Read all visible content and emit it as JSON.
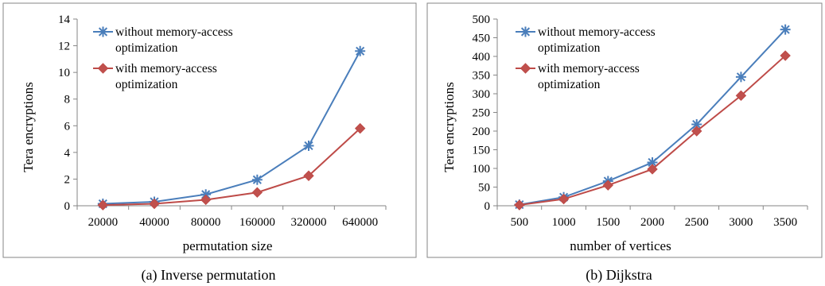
{
  "colors": {
    "series_without": "#4a7ebb",
    "series_with": "#be4b48",
    "marker_with_fill": "#c0504d",
    "axis": "#868686",
    "frame": "#868686"
  },
  "chart_data": [
    {
      "type": "line",
      "ylabel": "Tera encryptions",
      "xlabel": "permutation size",
      "categories": [
        "20000",
        "40000",
        "80000",
        "160000",
        "320000",
        "640000"
      ],
      "ylim": [
        0,
        14
      ],
      "yticks": [
        "0",
        "2",
        "4",
        "6",
        "8",
        "10",
        "12",
        "14"
      ],
      "grid": false,
      "legend_position": "top-left",
      "series": [
        {
          "name_lines": [
            "without memory-access",
            "optimization"
          ],
          "marker": "asterisk",
          "values": [
            0.15,
            0.3,
            0.85,
            1.95,
            4.5,
            11.6
          ]
        },
        {
          "name_lines": [
            "with memory-access",
            "optimization"
          ],
          "marker": "diamond",
          "values": [
            0.05,
            0.15,
            0.45,
            1.0,
            2.25,
            5.8
          ]
        }
      ],
      "caption": "(a) Inverse permutation"
    },
    {
      "type": "line",
      "ylabel": "Tera encryptions",
      "xlabel": "number of vertices",
      "categories": [
        "500",
        "1000",
        "1500",
        "2000",
        "2500",
        "3000",
        "3500"
      ],
      "ylim": [
        0,
        500
      ],
      "yticks": [
        "0",
        "50",
        "100",
        "150",
        "200",
        "250",
        "300",
        "350",
        "400",
        "450",
        "500"
      ],
      "grid": false,
      "legend_position": "top-left",
      "series": [
        {
          "name_lines": [
            "without memory-access",
            "optimization"
          ],
          "marker": "asterisk",
          "values": [
            3,
            23,
            66,
            116,
            218,
            345,
            472
          ]
        },
        {
          "name_lines": [
            "with memory-access",
            "optimization"
          ],
          "marker": "diamond",
          "values": [
            2,
            18,
            55,
            98,
            200,
            295,
            402
          ]
        }
      ],
      "caption": "(b) Dijkstra"
    }
  ]
}
